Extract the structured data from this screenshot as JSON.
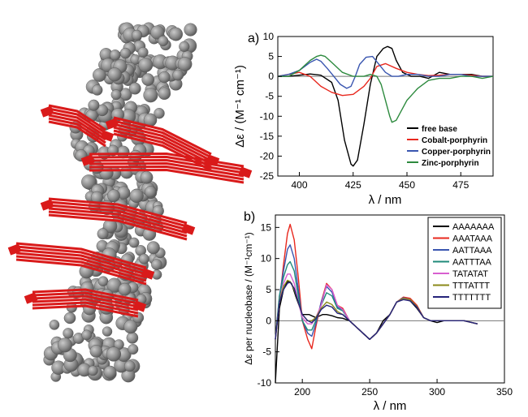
{
  "chart_data": [
    {
      "type": "line",
      "panel_label": "a)",
      "xlabel": "λ / nm",
      "ylabel": "Δε / (M⁻¹ cm⁻¹)",
      "xlim": [
        390,
        490
      ],
      "ylim": [
        -25,
        10
      ],
      "xticks": [
        400,
        425,
        450,
        475
      ],
      "yticks": [
        10,
        5,
        0,
        -5,
        -10,
        -15,
        -20,
        -25
      ],
      "legend_position": "bottom-right",
      "series": [
        {
          "name": "free base",
          "color": "#000000",
          "x": [
            390,
            395,
            400,
            405,
            410,
            415,
            418,
            421,
            424,
            425,
            427,
            430,
            433,
            436,
            439,
            441,
            443,
            445,
            448,
            452,
            456,
            460,
            465,
            470,
            475,
            480,
            485,
            490
          ],
          "y": [
            0,
            0,
            0.3,
            0.6,
            0.3,
            -1.5,
            -6,
            -16,
            -22,
            -22.5,
            -21,
            -12,
            -2,
            5,
            7,
            7.5,
            7,
            4,
            1,
            0,
            0,
            -0.5,
            1,
            0.5,
            0.5,
            0.5,
            0,
            0
          ]
        },
        {
          "name": "Cobalt-porphyrin",
          "color": "#e8281e",
          "x": [
            390,
            395,
            400,
            405,
            410,
            415,
            420,
            425,
            430,
            433,
            436,
            440,
            445,
            450,
            455,
            460,
            465,
            470,
            475,
            480,
            485,
            490
          ],
          "y": [
            0,
            0.5,
            1,
            0,
            -2.5,
            -4,
            -4.8,
            -4.5,
            -2.5,
            -0.5,
            2.5,
            3.2,
            2,
            1,
            0.5,
            0.2,
            0.3,
            0.5,
            0.5,
            0.3,
            0,
            0
          ]
        },
        {
          "name": "Copper-porphyrin",
          "color": "#3a56b0",
          "x": [
            390,
            395,
            400,
            405,
            408,
            410,
            413,
            416,
            419,
            422,
            424,
            426,
            428,
            431,
            434,
            437,
            440,
            443,
            446,
            450,
            455,
            460,
            465,
            470,
            475,
            480,
            485,
            490
          ],
          "y": [
            0,
            0.5,
            1.5,
            3.5,
            4.3,
            3.8,
            2,
            0,
            -2,
            -3,
            -2.5,
            0,
            3,
            4.8,
            5,
            3,
            1,
            0,
            0,
            0.5,
            0.5,
            0,
            0,
            0.5,
            0.5,
            0,
            0,
            0
          ]
        },
        {
          "name": "Zinc-porphyrin",
          "color": "#2d8a3e",
          "x": [
            390,
            395,
            400,
            405,
            408,
            410,
            412,
            415,
            420,
            425,
            430,
            433,
            436,
            438,
            440,
            442,
            443,
            445,
            447,
            450,
            455,
            460,
            465,
            470,
            475,
            480,
            485,
            490
          ],
          "y": [
            0,
            0,
            1.5,
            4,
            5,
            5.3,
            5,
            3.5,
            1,
            0,
            0,
            0.5,
            0,
            -2,
            -6,
            -10,
            -11.5,
            -11,
            -9,
            -6,
            -3,
            -1,
            -0.5,
            -0.5,
            0,
            0,
            -0.5,
            0
          ]
        }
      ]
    },
    {
      "type": "line",
      "panel_label": "b)",
      "xlabel": "λ / nm",
      "ylabel": "Δε per nucleobase / (M⁻¹cm⁻¹)",
      "xlim": [
        180,
        350
      ],
      "ylim": [
        -10,
        17
      ],
      "xticks": [
        200,
        250,
        300,
        350
      ],
      "yticks": [
        15,
        10,
        5,
        0,
        -5,
        -10
      ],
      "legend_position": "top-right",
      "series": [
        {
          "name": "AAAAAAA",
          "color": "#000000",
          "x": [
            180,
            183,
            186,
            189,
            192,
            195,
            200,
            205,
            210,
            215,
            218,
            222,
            226,
            230,
            235,
            240,
            245,
            250,
            255,
            260,
            265,
            270,
            275,
            280,
            285,
            290,
            295,
            300,
            305,
            310,
            320,
            330
          ],
          "y": [
            -10,
            2,
            5,
            6.3,
            6,
            4,
            1,
            1,
            0.5,
            1,
            1,
            0.8,
            0.5,
            0.4,
            0,
            -1,
            -2,
            -3,
            -2,
            0,
            1,
            3,
            3.5,
            3.2,
            2,
            0.5,
            0,
            -0.3,
            0,
            0,
            0,
            -0.5
          ]
        },
        {
          "name": "AAATAAA",
          "color": "#e8281e",
          "x": [
            180,
            183,
            186,
            189,
            191,
            194,
            197,
            200,
            204,
            207,
            210,
            214,
            218,
            222,
            226,
            230,
            235,
            240,
            245,
            250,
            255,
            260,
            265,
            270,
            275,
            280,
            285,
            290,
            295,
            300,
            305,
            310,
            320,
            330
          ],
          "y": [
            -3,
            3,
            9,
            14,
            15.5,
            13,
            7,
            0,
            -3,
            -4.5,
            -1,
            3,
            6,
            5,
            2.5,
            2,
            0,
            -1,
            -2,
            -3,
            -2,
            -0.5,
            1,
            3,
            3.8,
            3.6,
            2.5,
            0.5,
            0,
            0,
            0,
            0,
            0,
            -0.5
          ]
        },
        {
          "name": "AATTAAA",
          "color": "#3a56b0",
          "x": [
            180,
            183,
            186,
            189,
            191,
            194,
            197,
            200,
            204,
            207,
            210,
            214,
            218,
            222,
            226,
            230,
            235,
            240,
            245,
            250,
            255,
            260,
            265,
            270,
            275,
            280,
            285,
            290,
            295,
            300,
            305,
            310,
            320,
            330
          ],
          "y": [
            -3,
            4,
            8,
            11.5,
            12.2,
            10,
            5,
            0,
            -2,
            -2.5,
            -0.5,
            3,
            5.5,
            4.6,
            2.2,
            1.8,
            0,
            -1,
            -2,
            -3,
            -2,
            -0.5,
            1,
            3,
            3.7,
            3.4,
            2.3,
            0.5,
            0,
            0,
            0,
            0,
            0,
            -0.5
          ]
        },
        {
          "name": "AATTTAA",
          "color": "#1f8a7a",
          "x": [
            180,
            183,
            186,
            189,
            191,
            194,
            197,
            200,
            204,
            207,
            210,
            214,
            218,
            222,
            226,
            230,
            235,
            240,
            245,
            250,
            255,
            260,
            265,
            270,
            275,
            280,
            285,
            290,
            295,
            300,
            305,
            310,
            320,
            330
          ],
          "y": [
            -3,
            4,
            7,
            9,
            9.5,
            8,
            4,
            0,
            -1.5,
            -1.5,
            0,
            2.5,
            4.5,
            4,
            2,
            1.6,
            0,
            -1,
            -2,
            -3,
            -2,
            -0.5,
            1,
            3,
            3.5,
            3.3,
            2.2,
            0.5,
            0,
            0,
            0,
            0,
            0,
            -0.5
          ]
        },
        {
          "name": "TATATAT",
          "color": "#d85fd0",
          "x": [
            180,
            183,
            186,
            189,
            191,
            194,
            197,
            200,
            204,
            207,
            210,
            214,
            218,
            222,
            226,
            230,
            235,
            240,
            245,
            250,
            255,
            260,
            265,
            270,
            275,
            280,
            285,
            290,
            295,
            300,
            305,
            310,
            320,
            330
          ],
          "y": [
            -3,
            3,
            6,
            7.5,
            7.5,
            6,
            3,
            0.5,
            -0.5,
            -0.5,
            0.5,
            2.5,
            5.8,
            5,
            2.5,
            1.8,
            0,
            -1,
            -2,
            -3,
            -2,
            -0.5,
            1,
            3,
            3.5,
            3.3,
            2.2,
            0.5,
            0,
            0,
            0,
            0,
            0,
            -0.5
          ]
        },
        {
          "name": "TTTATTT",
          "color": "#8b8a1a",
          "x": [
            180,
            183,
            186,
            189,
            191,
            194,
            197,
            200,
            204,
            207,
            210,
            214,
            218,
            222,
            226,
            230,
            235,
            240,
            245,
            250,
            255,
            260,
            265,
            270,
            275,
            280,
            285,
            290,
            295,
            300,
            305,
            310,
            320,
            330
          ],
          "y": [
            -3,
            3,
            5.5,
            6.5,
            6.3,
            5,
            3,
            1,
            0,
            0,
            0.5,
            2,
            3,
            2.6,
            1.5,
            1,
            0,
            -1,
            -2,
            -3,
            -2,
            -0.5,
            1,
            3,
            3.6,
            3.4,
            2.3,
            0.5,
            0,
            0,
            0,
            0,
            0,
            -0.5
          ]
        },
        {
          "name": "TTTTTTT",
          "color": "#25237a",
          "x": [
            180,
            183,
            186,
            189,
            191,
            194,
            197,
            200,
            204,
            207,
            210,
            214,
            218,
            222,
            226,
            230,
            235,
            240,
            245,
            250,
            255,
            260,
            265,
            270,
            275,
            280,
            285,
            290,
            295,
            300,
            305,
            310,
            320,
            330
          ],
          "y": [
            -3,
            3,
            5,
            6,
            6.2,
            5.2,
            3,
            1,
            0,
            -0.3,
            0.3,
            1.8,
            2.5,
            2.2,
            1.2,
            1,
            0,
            -1,
            -2,
            -3,
            -2,
            -0.5,
            1,
            3,
            3.4,
            3.2,
            2.2,
            0.5,
            0,
            0,
            0,
            0,
            0,
            -0.5
          ]
        }
      ]
    }
  ]
}
